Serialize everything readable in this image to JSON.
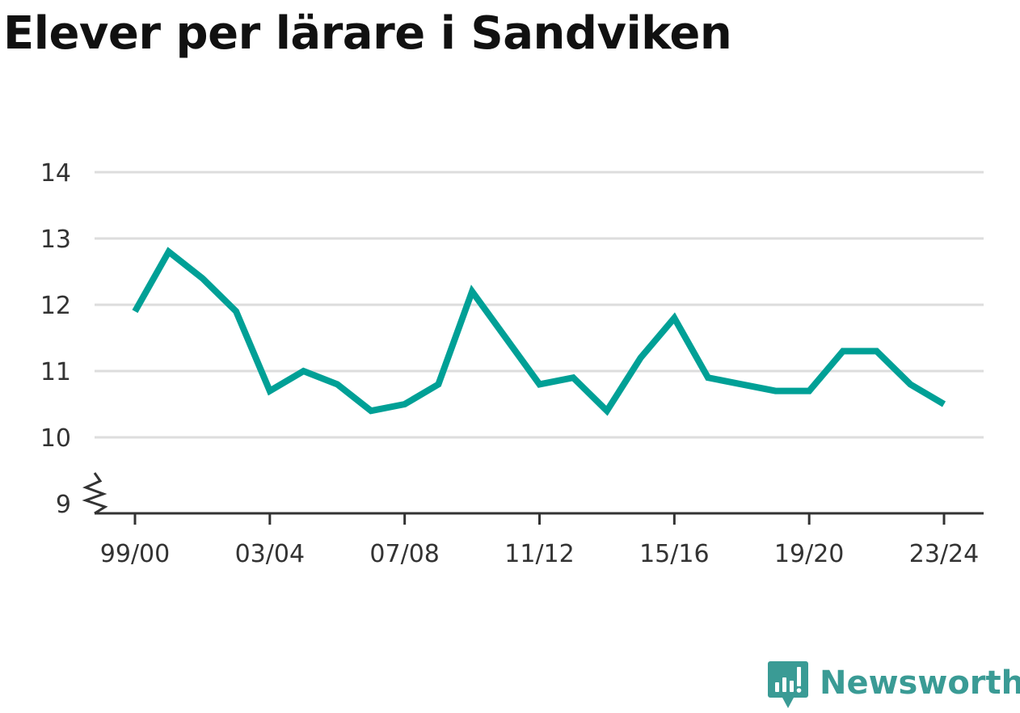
{
  "title": "Elever per lärare i Sandviken",
  "brand": {
    "name": "Newsworthy",
    "color": "#3a9b95",
    "icon": "bar-chart-speech-bubble-icon"
  },
  "chart_data": {
    "type": "line",
    "title": "Elever per lärare i Sandviken",
    "xlabel": "",
    "ylabel": "",
    "x": [
      "99/00",
      "00/01",
      "01/02",
      "02/03",
      "03/04",
      "04/05",
      "05/06",
      "06/07",
      "07/08",
      "08/09",
      "09/10",
      "10/11",
      "11/12",
      "12/13",
      "13/14",
      "14/15",
      "15/16",
      "16/17",
      "17/18",
      "18/19",
      "19/20",
      "20/21",
      "21/22",
      "22/23",
      "23/24"
    ],
    "series": [
      {
        "color": "#00a096",
        "values": [
          11.9,
          12.8,
          12.4,
          11.9,
          10.7,
          11.0,
          10.8,
          10.4,
          10.5,
          10.8,
          12.2,
          11.5,
          10.8,
          10.9,
          10.4,
          11.2,
          11.8,
          10.9,
          10.8,
          10.7,
          10.7,
          11.3,
          11.3,
          10.8,
          10.5
        ]
      }
    ],
    "x_tick_labels": [
      "99/00",
      "03/04",
      "07/08",
      "11/12",
      "15/16",
      "19/20",
      "23/24"
    ],
    "y_ticks": [
      9,
      10,
      11,
      12,
      13,
      14
    ],
    "ylim": [
      9,
      14
    ],
    "axis_break": true,
    "grid": true,
    "grid_color": "#dddddd",
    "legend": "none"
  }
}
